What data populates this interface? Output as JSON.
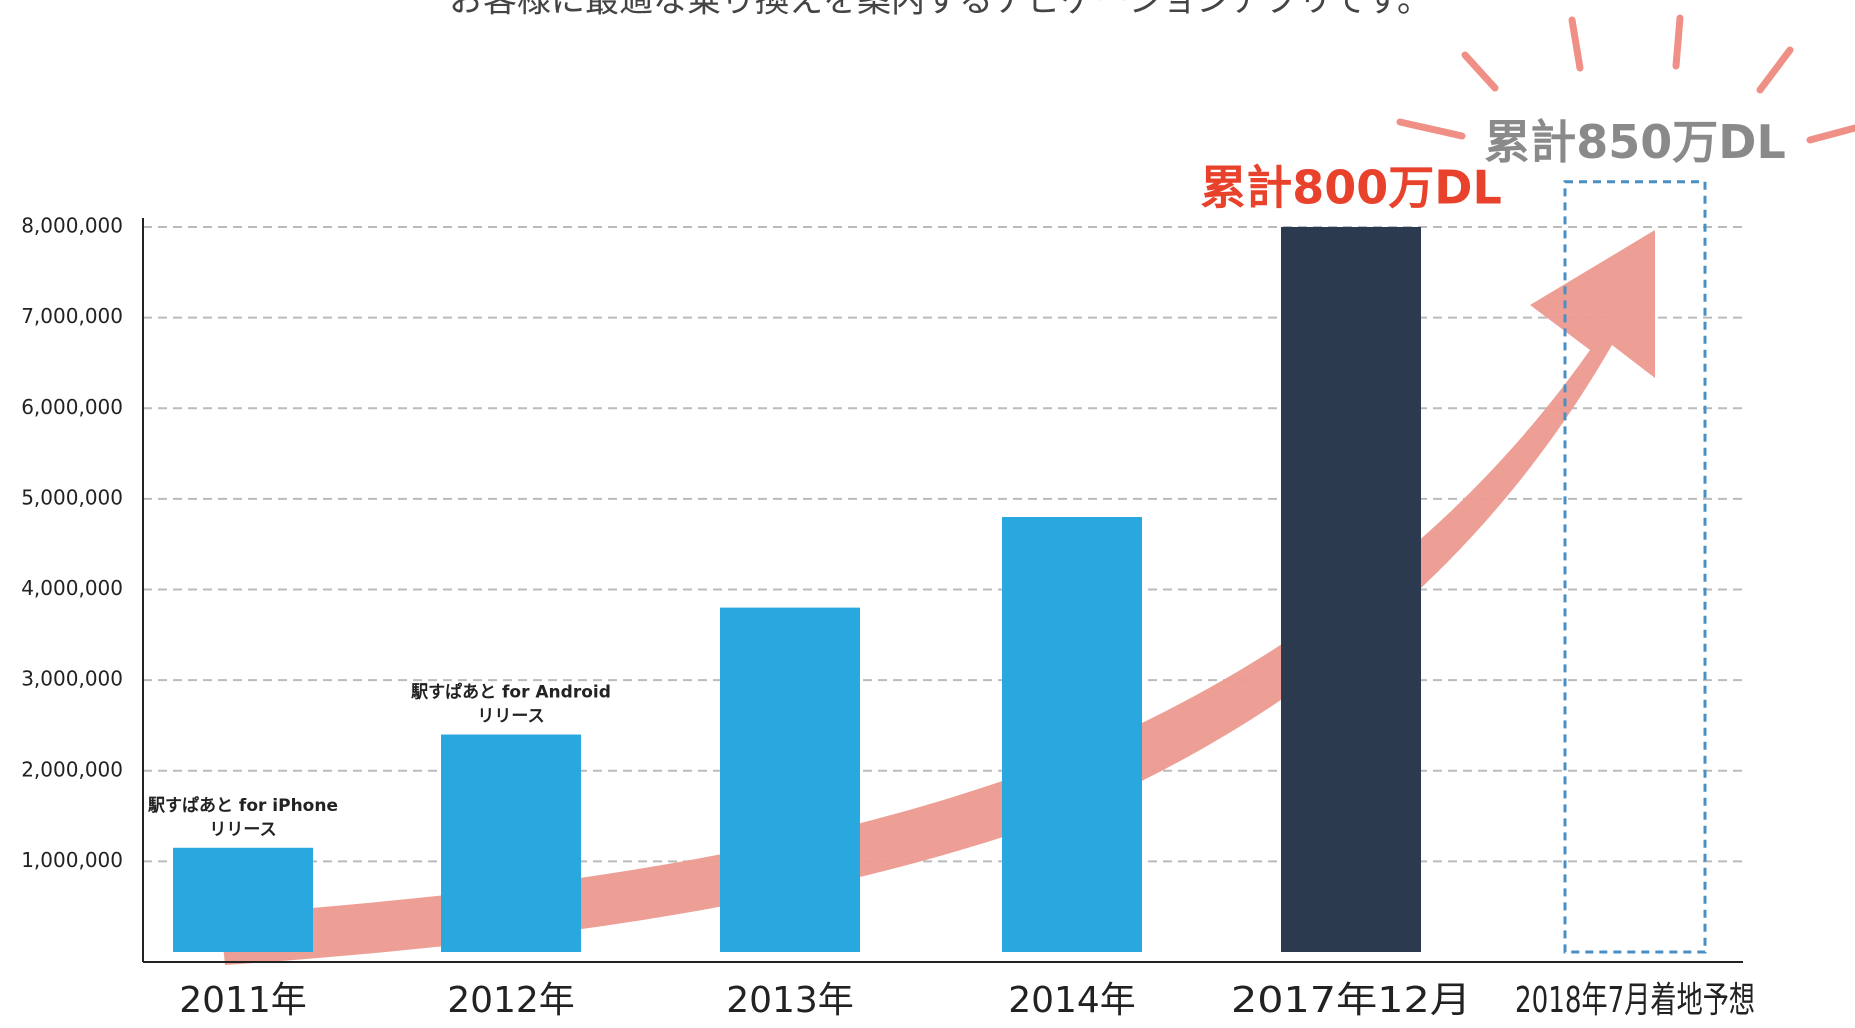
{
  "chart_data": {
    "type": "bar",
    "subtitle": "お客様に最適な乗り換えを案内するナビゲーションアプリです。",
    "categories": [
      "2011年",
      "2012年",
      "2013年",
      "2014年",
      "2017年12月",
      "2018年7月着地予想"
    ],
    "values": [
      1150000,
      2400000,
      3800000,
      4800000,
      8000000,
      8500000
    ],
    "colors": [
      "#29a8e0",
      "#29a8e0",
      "#29a8e0",
      "#29a8e0",
      "#2b3a4f",
      "#4a8fc4"
    ],
    "bar_styles": [
      "solid",
      "solid",
      "solid",
      "solid",
      "solid",
      "dashed"
    ],
    "ylim": [
      0,
      8000000
    ],
    "yticks": [
      {
        "value": 1000000,
        "label": "1,000,000"
      },
      {
        "value": 2000000,
        "label": "2,000,000"
      },
      {
        "value": 3000000,
        "label": "3,000,000"
      },
      {
        "value": 4000000,
        "label": "4,000,000"
      },
      {
        "value": 5000000,
        "label": "5,000,000"
      },
      {
        "value": 6000000,
        "label": "6,000,000"
      },
      {
        "value": 7000000,
        "label": "7,000,000"
      },
      {
        "value": 8000000,
        "label": "8,000,000"
      }
    ],
    "grid": true,
    "annotations": [
      {
        "text": [
          "駅すぱあと for iPhone",
          "リリース"
        ],
        "bar": 0
      },
      {
        "text": [
          "駅すぱあと for Android",
          "リリース"
        ],
        "bar": 1
      }
    ],
    "totals": [
      {
        "text": "累計800万DL",
        "bar": 4,
        "color": "#e8412c"
      },
      {
        "text": "累計850万DL",
        "bar": 5,
        "color": "#8a8a8a"
      }
    ]
  }
}
